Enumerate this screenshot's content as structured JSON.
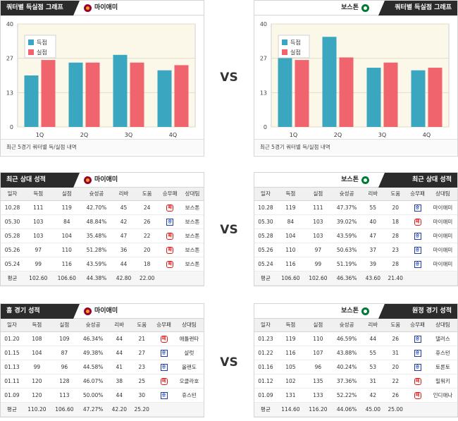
{
  "chart_panels": [
    {
      "side": "left",
      "tag": "쿼터별 득실점 그래프",
      "team": "마이애미",
      "footnote": "최근 5경기 쿼터별 득/실점 내역",
      "chart_data": {
        "type": "bar",
        "categories": [
          "1Q",
          "2Q",
          "3Q",
          "4Q"
        ],
        "series": [
          {
            "name": "득점",
            "values": [
              20,
              25,
              28,
              22
            ],
            "color": "#3aa6bf"
          },
          {
            "name": "실점",
            "values": [
              26,
              25,
              25,
              24
            ],
            "color": "#f0646e"
          }
        ],
        "yticks": [
          "0",
          "13",
          "27",
          "40"
        ],
        "ylim": [
          0,
          40
        ],
        "legend": "top-left"
      }
    },
    {
      "side": "right",
      "tag": "쿼터별 득실점 그래프",
      "team": "보스톤",
      "footnote": "최근 5경기 쿼터별 득/실점 내역",
      "chart_data": {
        "type": "bar",
        "categories": [
          "1Q",
          "2Q",
          "3Q",
          "4Q"
        ],
        "series": [
          {
            "name": "득점",
            "values": [
              30,
              35,
              23,
              22
            ],
            "color": "#3aa6bf"
          },
          {
            "name": "실점",
            "values": [
              26,
              27,
              25,
              23
            ],
            "color": "#f0646e"
          }
        ],
        "yticks": [
          "0",
          "13",
          "27",
          "40"
        ],
        "ylim": [
          0,
          40
        ],
        "legend": "top-left"
      }
    }
  ],
  "vs_label": "VS",
  "columns": [
    "일자",
    "득점",
    "실점",
    "슛성공",
    "리바",
    "도움",
    "승무패",
    "상대팀"
  ],
  "table_panels": [
    {
      "side": "left",
      "tag": "최근 상대 성적",
      "team": "마이애미",
      "rows": [
        [
          "10.28",
          "111",
          "119",
          "42.70%",
          "45",
          "24",
          "패",
          "보스톤"
        ],
        [
          "05.30",
          "103",
          "84",
          "48.84%",
          "42",
          "26",
          "승",
          "보스톤"
        ],
        [
          "05.28",
          "103",
          "104",
          "35.48%",
          "47",
          "22",
          "패",
          "보스톤"
        ],
        [
          "05.26",
          "97",
          "110",
          "51.28%",
          "36",
          "20",
          "패",
          "보스톤"
        ],
        [
          "05.24",
          "99",
          "116",
          "43.59%",
          "44",
          "18",
          "패",
          "보스톤"
        ]
      ],
      "avg": [
        "평균",
        "102.60",
        "106.60",
        "44.38%",
        "42.80",
        "22.00",
        "",
        ""
      ]
    },
    {
      "side": "right",
      "tag": "최근 상대 성적",
      "team": "보스톤",
      "rows": [
        [
          "10.28",
          "119",
          "111",
          "47.37%",
          "55",
          "20",
          "승",
          "마이애미"
        ],
        [
          "05.30",
          "84",
          "103",
          "39.02%",
          "40",
          "18",
          "패",
          "마이애미"
        ],
        [
          "05.28",
          "104",
          "103",
          "43.59%",
          "47",
          "28",
          "승",
          "마이애미"
        ],
        [
          "05.26",
          "110",
          "97",
          "50.63%",
          "37",
          "23",
          "승",
          "마이애미"
        ],
        [
          "05.24",
          "116",
          "99",
          "51.19%",
          "39",
          "28",
          "승",
          "마이애미"
        ]
      ],
      "avg": [
        "평균",
        "106.60",
        "102.60",
        "46.36%",
        "43.60",
        "21.40",
        "",
        ""
      ]
    },
    {
      "side": "left",
      "tag": "홈 경기 성적",
      "team": "마이애미",
      "rows": [
        [
          "01.20",
          "108",
          "109",
          "46.34%",
          "44",
          "21",
          "패",
          "애틀랜타"
        ],
        [
          "01.15",
          "104",
          "87",
          "49.38%",
          "44",
          "27",
          "승",
          "샬럿"
        ],
        [
          "01.13",
          "99",
          "96",
          "44.58%",
          "41",
          "23",
          "승",
          "올랜도"
        ],
        [
          "01.11",
          "120",
          "128",
          "46.07%",
          "38",
          "25",
          "패",
          "오클라호"
        ],
        [
          "01.09",
          "120",
          "113",
          "50.00%",
          "44",
          "30",
          "승",
          "휴스턴"
        ]
      ],
      "avg": [
        "평균",
        "110.20",
        "106.60",
        "47.27%",
        "42.20",
        "25.20",
        "",
        ""
      ]
    },
    {
      "side": "right",
      "tag": "원정 경기 성적",
      "team": "보스톤",
      "rows": [
        [
          "01.23",
          "119",
          "110",
          "46.59%",
          "44",
          "26",
          "승",
          "댈러스"
        ],
        [
          "01.22",
          "116",
          "107",
          "43.88%",
          "55",
          "31",
          "승",
          "휴스턴"
        ],
        [
          "01.16",
          "105",
          "96",
          "40.24%",
          "53",
          "20",
          "승",
          "토론토"
        ],
        [
          "01.12",
          "102",
          "135",
          "37.36%",
          "31",
          "22",
          "패",
          "밀워키"
        ],
        [
          "01.09",
          "131",
          "133",
          "52.22%",
          "42",
          "26",
          "패",
          "인디애나"
        ]
      ],
      "avg": [
        "평균",
        "114.60",
        "116.20",
        "44.06%",
        "45.00",
        "25.00",
        "",
        ""
      ]
    }
  ]
}
